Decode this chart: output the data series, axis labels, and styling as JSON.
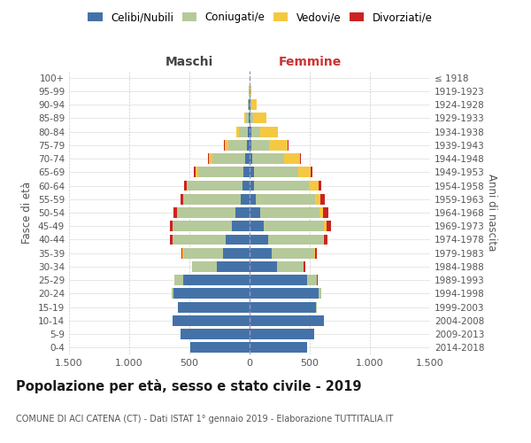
{
  "age_groups": [
    "100+",
    "95-99",
    "90-94",
    "85-89",
    "80-84",
    "75-79",
    "70-74",
    "65-69",
    "60-64",
    "55-59",
    "50-54",
    "45-49",
    "40-44",
    "35-39",
    "30-34",
    "25-29",
    "20-24",
    "15-19",
    "10-14",
    "5-9",
    "0-4"
  ],
  "birth_years": [
    "≤ 1918",
    "1919-1923",
    "1924-1928",
    "1929-1933",
    "1934-1938",
    "1939-1943",
    "1944-1948",
    "1949-1953",
    "1954-1958",
    "1959-1963",
    "1964-1968",
    "1969-1973",
    "1974-1978",
    "1979-1983",
    "1984-1988",
    "1989-1993",
    "1994-1998",
    "1999-2003",
    "2004-2008",
    "2009-2013",
    "2014-2018"
  ],
  "males_celibi": [
    0,
    2,
    4,
    8,
    15,
    25,
    40,
    55,
    60,
    75,
    115,
    145,
    195,
    220,
    270,
    550,
    630,
    595,
    640,
    575,
    495
  ],
  "males_coniugati": [
    1,
    3,
    8,
    25,
    75,
    155,
    270,
    375,
    455,
    475,
    485,
    495,
    445,
    335,
    205,
    75,
    18,
    4,
    1,
    0,
    0
  ],
  "males_vedovi": [
    0,
    2,
    4,
    8,
    18,
    28,
    28,
    18,
    8,
    4,
    2,
    2,
    1,
    1,
    0,
    0,
    0,
    0,
    0,
    0,
    0
  ],
  "males_divorziati": [
    0,
    0,
    0,
    0,
    2,
    4,
    8,
    12,
    18,
    22,
    28,
    22,
    18,
    12,
    4,
    2,
    0,
    0,
    0,
    0,
    0
  ],
  "females_nubili": [
    0,
    2,
    4,
    8,
    12,
    18,
    25,
    35,
    40,
    50,
    85,
    115,
    155,
    185,
    225,
    475,
    575,
    555,
    615,
    535,
    475
  ],
  "females_coniugate": [
    1,
    3,
    8,
    25,
    75,
    145,
    260,
    370,
    455,
    495,
    495,
    505,
    455,
    355,
    225,
    85,
    22,
    4,
    1,
    0,
    0
  ],
  "females_vedove": [
    2,
    12,
    45,
    105,
    145,
    155,
    135,
    105,
    75,
    45,
    28,
    18,
    8,
    4,
    2,
    1,
    1,
    0,
    0,
    0,
    0
  ],
  "females_divorziate": [
    0,
    0,
    0,
    2,
    4,
    7,
    10,
    15,
    22,
    32,
    45,
    42,
    32,
    18,
    8,
    2,
    1,
    0,
    0,
    0,
    0
  ],
  "colors": {
    "celibi": "#4472a8",
    "coniugati": "#b5c99a",
    "vedovi": "#f5c842",
    "divorziati": "#cc2222"
  },
  "title": "Popolazione per età, sesso e stato civile - 2019",
  "subtitle": "COMUNE DI ACI CATENA (CT) - Dati ISTAT 1° gennaio 2019 - Elaborazione TUTTITALIA.IT",
  "label_maschi": "Maschi",
  "label_femmine": "Femmine",
  "ylabel_left": "Fasce di età",
  "ylabel_right": "Anni di nascita",
  "xlim": 1500,
  "legend_labels": [
    "Celibi/Nubili",
    "Coniugati/e",
    "Vedovi/e",
    "Divorziati/e"
  ],
  "maschi_color": "#444444",
  "femmine_color": "#cc3333"
}
